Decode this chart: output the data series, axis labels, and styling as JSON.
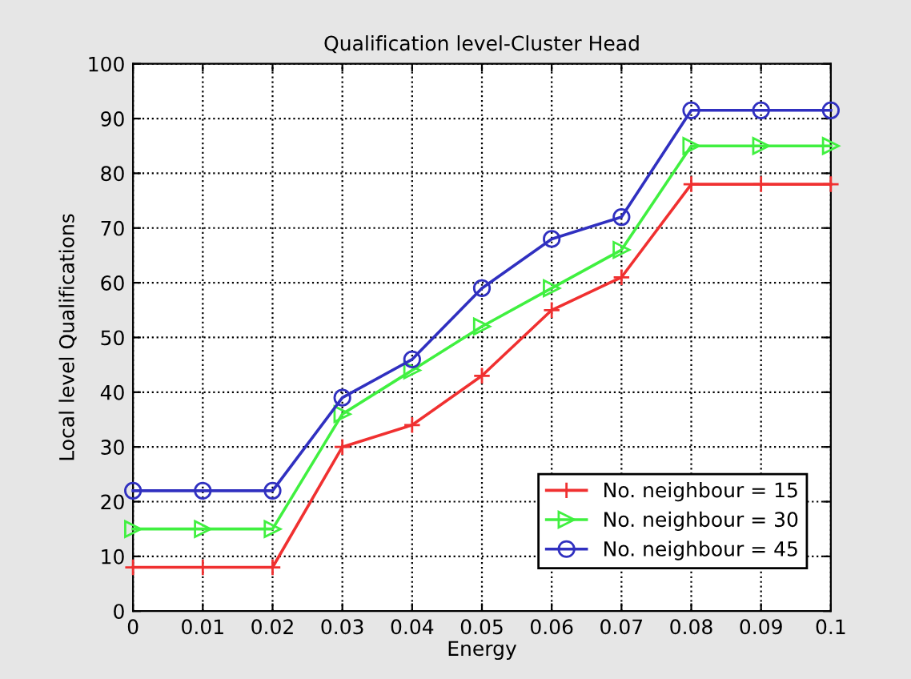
{
  "chart_data": {
    "type": "line",
    "title": "Qualification level-Cluster Head",
    "xlabel": "Energy",
    "ylabel": "Local level Qualifications",
    "x": [
      0,
      0.01,
      0.02,
      0.03,
      0.04,
      0.05,
      0.06,
      0.07,
      0.08,
      0.09,
      0.1
    ],
    "series": [
      {
        "name": "No. neighbour = 15",
        "color": "#f03030",
        "marker": "cross",
        "values": [
          8,
          8,
          8,
          30,
          34,
          43,
          55,
          61,
          78,
          78,
          78
        ]
      },
      {
        "name": "No. neighbour = 30",
        "color": "#40f040",
        "marker": "triangle",
        "values": [
          15,
          15,
          15,
          36,
          44,
          52,
          59,
          66,
          85,
          85,
          85
        ]
      },
      {
        "name": "No. neighbour = 45",
        "color": "#3030c0",
        "marker": "circle",
        "values": [
          22,
          22,
          22,
          39,
          46,
          59,
          68,
          72,
          91.5,
          91.5,
          91.5
        ]
      }
    ],
    "xlim": [
      0,
      0.1
    ],
    "xticks": [
      0,
      0.01,
      0.02,
      0.03,
      0.04,
      0.05,
      0.06,
      0.07,
      0.08,
      0.09,
      0.1
    ],
    "ylim": [
      0,
      100
    ],
    "yticks": [
      0,
      10,
      20,
      30,
      40,
      50,
      60,
      70,
      80,
      90,
      100
    ],
    "grid": true,
    "legend": "bottom right",
    "line_style": "solid"
  }
}
